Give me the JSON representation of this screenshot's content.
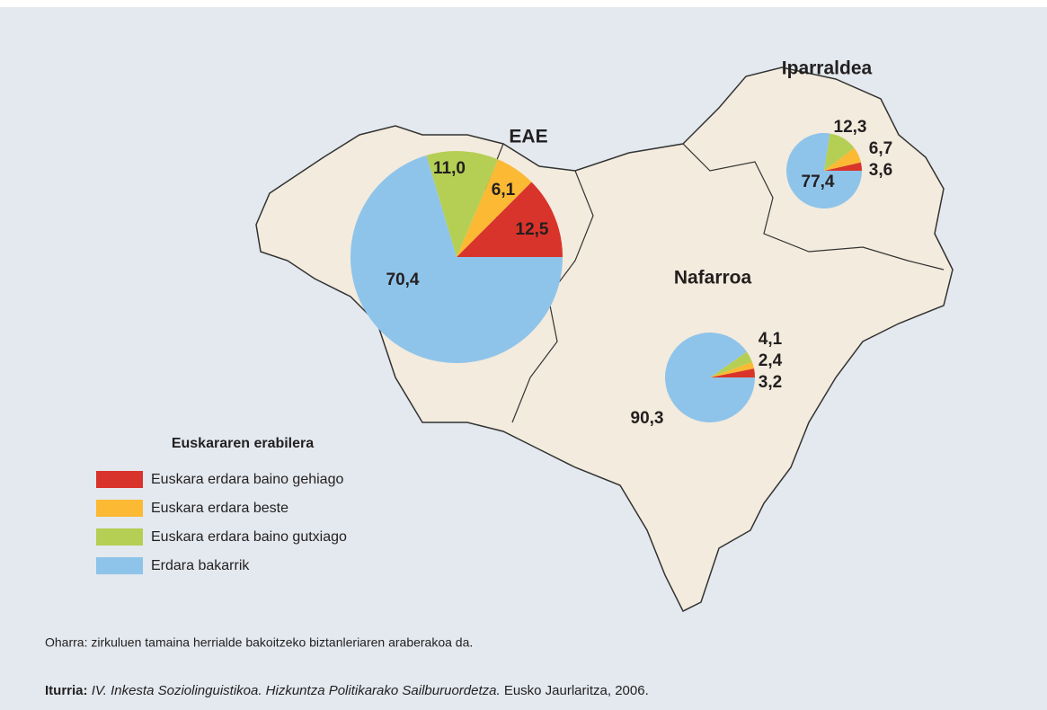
{
  "chart_data": [
    {
      "type": "pie",
      "title": "EAE",
      "categories": [
        "Euskara erdara baino gehiago",
        "Euskara erdara beste",
        "Euskara erdara baino gutxiago",
        "Erdara bakarrik"
      ],
      "values": [
        12.5,
        6.1,
        11.0,
        70.4
      ],
      "value_labels": [
        "12,5",
        "6,1",
        "11,0",
        "70,4"
      ],
      "colors": [
        "#d9342b",
        "#fbb934",
        "#b5cf55",
        "#8fc4ea"
      ]
    },
    {
      "type": "pie",
      "title": "Iparraldea",
      "categories": [
        "Euskara erdara baino gehiago",
        "Euskara erdara beste",
        "Euskara erdara baino gutxiago",
        "Erdara bakarrik"
      ],
      "values": [
        3.6,
        6.7,
        12.3,
        77.4
      ],
      "value_labels": [
        "3,6",
        "6,7",
        "12,3",
        "77,4"
      ],
      "colors": [
        "#d9342b",
        "#fbb934",
        "#b5cf55",
        "#8fc4ea"
      ]
    },
    {
      "type": "pie",
      "title": "Nafarroa",
      "categories": [
        "Euskara erdara baino gehiago",
        "Euskara erdara beste",
        "Euskara erdara baino gutxiago",
        "Erdara bakarrik"
      ],
      "values": [
        3.2,
        2.4,
        4.1,
        90.3
      ],
      "value_labels": [
        "3,2",
        "2,4",
        "4,1",
        "90,3"
      ],
      "colors": [
        "#d9342b",
        "#fbb934",
        "#b5cf55",
        "#8fc4ea"
      ]
    }
  ],
  "legend": {
    "title": "Euskararen erabilera"
  },
  "note": "Oharra: zirkuluen tamaina herrialde bakoitzeko biztanleriaren araberakoa da.",
  "source": {
    "label": "Iturria:",
    "title": "IV. Inkesta Soziolinguistikoa. Hizkuntza Politikarako Sailburuordetza.",
    "publisher": "Eusko Jaurlaritza, 2006."
  }
}
